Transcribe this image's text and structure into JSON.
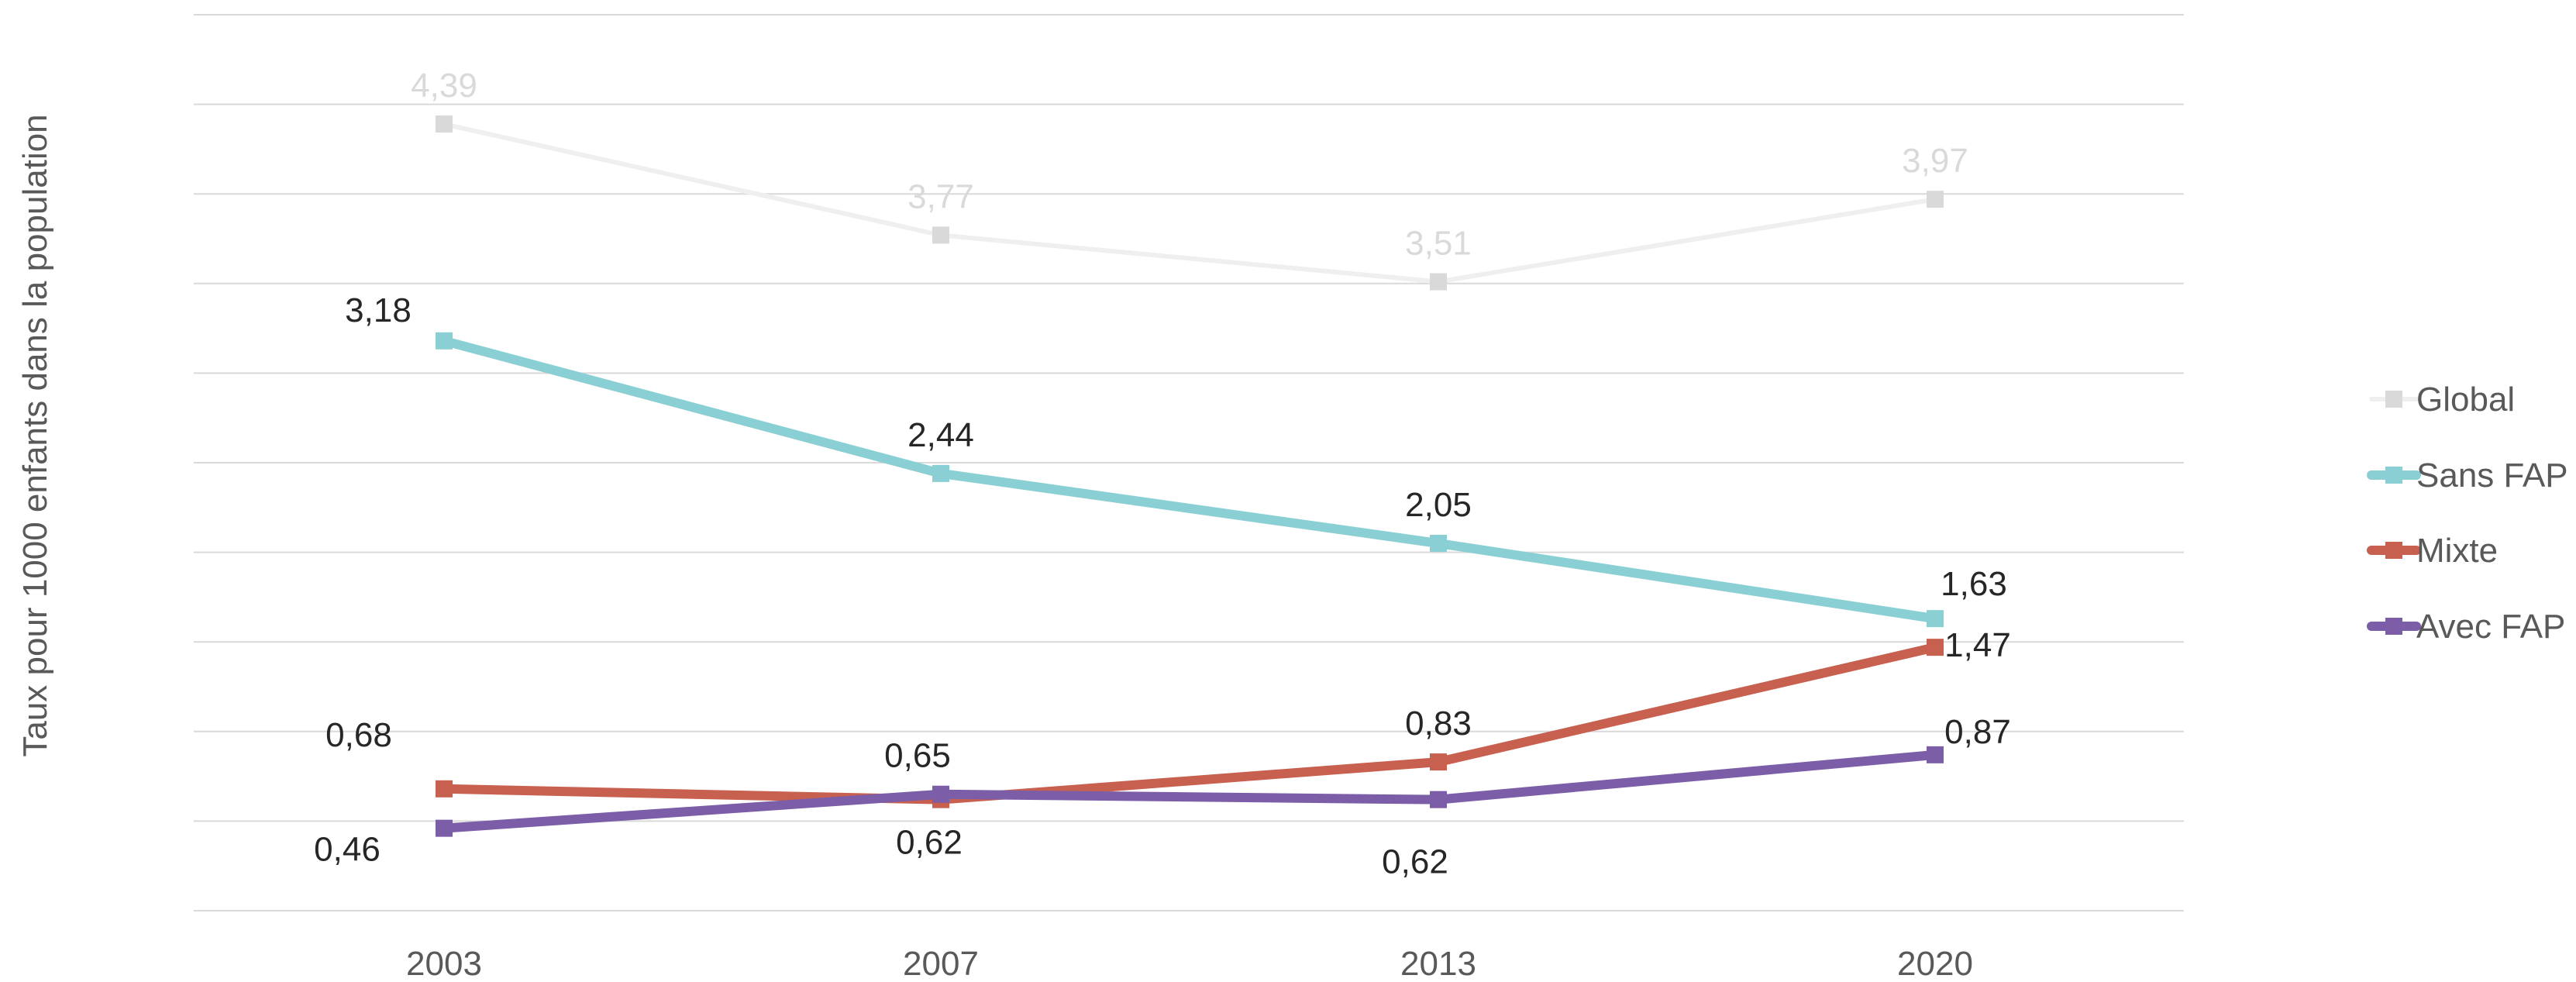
{
  "chart_data": {
    "type": "line",
    "categories": [
      "2003",
      "2007",
      "2013",
      "2020"
    ],
    "ylabel": "Taux pour 1000 enfants dans la population",
    "ylim": [
      0,
      5
    ],
    "grid": true,
    "legend_position": "right",
    "series": [
      {
        "name": "Global",
        "color": "#d9d9d9",
        "label_color": "#d9d9d9",
        "values": [
          4.39,
          3.77,
          3.51,
          3.97
        ],
        "labels": [
          "4,39",
          "3,77",
          "3,51",
          "3,97"
        ]
      },
      {
        "name": "Sans FAP",
        "color": "#8acfd3",
        "label_color": "#262626",
        "values": [
          3.18,
          2.44,
          2.05,
          1.63
        ],
        "labels": [
          "3,18",
          "2,44",
          "2,05",
          "1,63"
        ]
      },
      {
        "name": "Mixte",
        "color": "#c8604f",
        "label_color": "#262626",
        "values": [
          0.68,
          0.62,
          0.83,
          1.47
        ],
        "labels": [
          "0,68",
          "0,62",
          "0,83",
          "1,47"
        ]
      },
      {
        "name": "Avec FAP",
        "color": "#7b5ea7",
        "label_color": "#262626",
        "values": [
          0.46,
          0.65,
          0.62,
          0.87
        ],
        "labels": [
          "0,46",
          "0,65",
          "0,62",
          "0,87"
        ]
      }
    ]
  }
}
